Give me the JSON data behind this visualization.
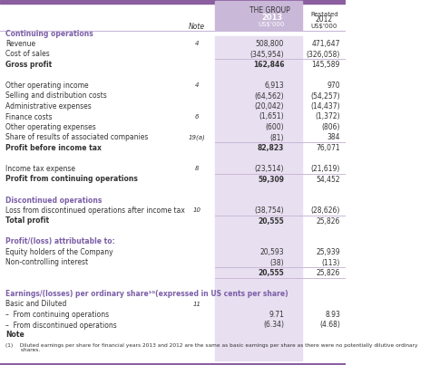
{
  "title_top_bar_color": "#8B5EA0",
  "header_bg_color": "#C9B8D8",
  "col2013_bg": "#E8DFF0",
  "white": "#FFFFFF",
  "purple_text": "#7B5EA7",
  "black_text": "#333333",
  "light_purple_line": "#C9B8D8",
  "header_group": "THE GROUP",
  "col2013_label": "2013",
  "col2013_unit": "US$'000",
  "col2012_label": "Restated\n2012",
  "col2012_unit": "US$'000",
  "note_label": "Note",
  "rows": [
    {
      "label": "Continuing operations",
      "bold": true,
      "purple": true,
      "note": "",
      "v2013": "",
      "v2012": "",
      "section_header": true
    },
    {
      "label": "Revenue",
      "bold": false,
      "note": "4",
      "v2013": "508,800",
      "v2012": "471,647"
    },
    {
      "label": "Cost of sales",
      "bold": false,
      "note": "",
      "v2013": "(345,954)",
      "v2012": "(326,058)"
    },
    {
      "label": "Gross profit",
      "bold": true,
      "note": "",
      "v2013": "162,846",
      "v2012": "145,589",
      "line_above": true
    },
    {
      "label": "",
      "bold": false,
      "note": "",
      "v2013": "",
      "v2012": "",
      "spacer": true
    },
    {
      "label": "Other operating income",
      "bold": false,
      "note": "4",
      "v2013": "6,913",
      "v2012": "970"
    },
    {
      "label": "Selling and distribution costs",
      "bold": false,
      "note": "",
      "v2013": "(64,562)",
      "v2012": "(54,257)"
    },
    {
      "label": "Administrative expenses",
      "bold": false,
      "note": "",
      "v2013": "(20,042)",
      "v2012": "(14,437)"
    },
    {
      "label": "Finance costs",
      "bold": false,
      "note": "6",
      "v2013": "(1,651)",
      "v2012": "(1,372)"
    },
    {
      "label": "Other operating expenses",
      "bold": false,
      "note": "",
      "v2013": "(600)",
      "v2012": "(806)"
    },
    {
      "label": "Share of results of associated companies",
      "bold": false,
      "note": "19(a)",
      "v2013": "(81)",
      "v2012": "384"
    },
    {
      "label": "Profit before income tax",
      "bold": true,
      "note": "",
      "v2013": "82,823",
      "v2012": "76,071",
      "line_above": true
    },
    {
      "label": "",
      "bold": false,
      "note": "",
      "v2013": "",
      "v2012": "",
      "spacer": true
    },
    {
      "label": "Income tax expense",
      "bold": false,
      "note": "8",
      "v2013": "(23,514)",
      "v2012": "(21,619)"
    },
    {
      "label": "Profit from continuing operations",
      "bold": true,
      "note": "",
      "v2013": "59,309",
      "v2012": "54,452",
      "line_above": true
    },
    {
      "label": "",
      "bold": false,
      "note": "",
      "v2013": "",
      "v2012": "",
      "spacer": true
    },
    {
      "label": "Discontinued operations",
      "bold": true,
      "purple": true,
      "note": "",
      "v2013": "",
      "v2012": "",
      "section_header": true
    },
    {
      "label": "Loss from discontinued operations after income tax",
      "bold": false,
      "note": "10",
      "v2013": "(38,754)",
      "v2012": "(28,626)"
    },
    {
      "label": "Total profit",
      "bold": true,
      "note": "",
      "v2013": "20,555",
      "v2012": "25,826",
      "line_above": true
    },
    {
      "label": "",
      "bold": false,
      "note": "",
      "v2013": "",
      "v2012": "",
      "spacer": true
    },
    {
      "label": "Profit/(loss) attributable to:",
      "bold": true,
      "purple": true,
      "note": "",
      "v2013": "",
      "v2012": "",
      "section_header": true
    },
    {
      "label": "Equity holders of the Company",
      "bold": false,
      "note": "",
      "v2013": "20,593",
      "v2012": "25,939"
    },
    {
      "label": "Non-controlling interest",
      "bold": false,
      "note": "",
      "v2013": "(38)",
      "v2012": "(113)"
    },
    {
      "label": "",
      "bold": true,
      "note": "",
      "v2013": "20,555",
      "v2012": "25,826",
      "line_above": true,
      "line_below": true
    },
    {
      "label": "",
      "bold": false,
      "note": "",
      "v2013": "",
      "v2012": "",
      "spacer": true
    },
    {
      "label": "Earnings/(losses) per ordinary share¹ᴳ(expressed in US cents per share)",
      "bold": true,
      "purple": true,
      "note": "",
      "v2013": "",
      "v2012": "",
      "section_header": true
    },
    {
      "label": "Basic and Diluted",
      "bold": false,
      "note": "11",
      "v2013": "",
      "v2012": ""
    },
    {
      "label": "–  From continuing operations",
      "bold": false,
      "note": "",
      "v2013": "9.71",
      "v2012": "8.93"
    },
    {
      "label": "–  From discontinued operations",
      "bold": false,
      "note": "",
      "v2013": "(6.34)",
      "v2012": "(4.68)"
    }
  ],
  "note_text": "Note",
  "footnote": "(1)    Diluted earnings per share for financial years 2013 and 2012 are the same as basic earnings per share as there were no potentially dilutive ordinary\n         shares."
}
